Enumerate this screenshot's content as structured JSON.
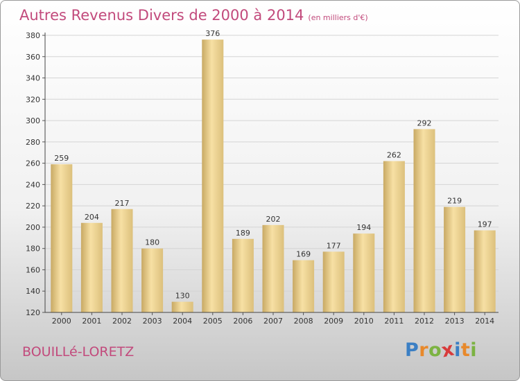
{
  "header": {
    "title": "Autres Revenus Divers de 2000 à 2014",
    "subtitle": "(en milliers d'€)"
  },
  "footer": {
    "commune": "BOUILLé-LORETZ",
    "logo": {
      "letters": [
        "P",
        "r",
        "o",
        "x",
        "i",
        "t",
        "i"
      ],
      "colors": [
        "#3b7fc4",
        "#e8892b",
        "#7cb342",
        "#d83b3b",
        "#3b7fc4",
        "#e8892b",
        "#7cb342"
      ]
    }
  },
  "colors": {
    "title": "#c24a7c",
    "bar_light": "#f7e0a4",
    "bar_dark": "#c8a964"
  },
  "chart_data": {
    "type": "bar",
    "categories": [
      "2000",
      "2001",
      "2002",
      "2003",
      "2004",
      "2005",
      "2006",
      "2007",
      "2008",
      "2009",
      "2010",
      "2011",
      "2012",
      "2013",
      "2014"
    ],
    "values": [
      259,
      204,
      217,
      180,
      130,
      376,
      189,
      202,
      169,
      177,
      194,
      262,
      292,
      219,
      197
    ],
    "ylim": [
      120,
      380
    ],
    "yticks": [
      120,
      140,
      160,
      180,
      200,
      220,
      240,
      260,
      280,
      300,
      320,
      340,
      360,
      380
    ],
    "grid": true,
    "title": "Autres Revenus Divers de 2000 à 2014",
    "xlabel": "",
    "ylabel": ""
  }
}
